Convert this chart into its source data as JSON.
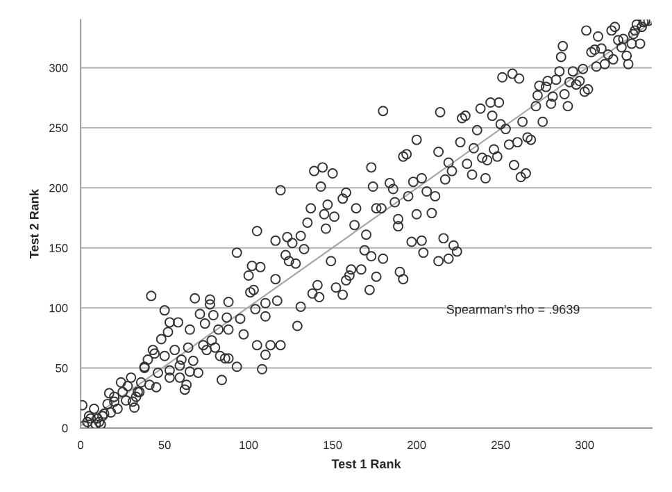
{
  "chart_data": {
    "type": "scatter",
    "xlabel": "Test 1 Rank",
    "ylabel": "Test 2 Rank",
    "xlim": [
      0,
      340
    ],
    "ylim": [
      0,
      340
    ],
    "xticks": [
      0,
      50,
      100,
      150,
      200,
      250,
      300
    ],
    "yticks": [
      0,
      50,
      100,
      150,
      200,
      250,
      300
    ],
    "grid": "y",
    "legend": false,
    "annotations": [
      "Spearman's rho = .9639"
    ],
    "series": [
      {
        "marker": "circle",
        "color": "#333333",
        "x": [
          1,
          2,
          4,
          5,
          8,
          9,
          10,
          12,
          13,
          16,
          17,
          20,
          22,
          24,
          27,
          30,
          32,
          34,
          36,
          38,
          40,
          42,
          43,
          45,
          46,
          48,
          50,
          52,
          53,
          53,
          53,
          58,
          59,
          60,
          62,
          64,
          65,
          67,
          68,
          70,
          71,
          73,
          74,
          77,
          77,
          79,
          80,
          82,
          83,
          84,
          87,
          88,
          88,
          88,
          93,
          93,
          95,
          97,
          100,
          101,
          102,
          103,
          104,
          105,
          105,
          107,
          108,
          110,
          110,
          110,
          113,
          116,
          116,
          117,
          119,
          119,
          122,
          123,
          124,
          126,
          128,
          129,
          131,
          131,
          133,
          135,
          137,
          138,
          139,
          141,
          142,
          143,
          144,
          145,
          146,
          147,
          149,
          150,
          151,
          152,
          156,
          156,
          158,
          158,
          160,
          161,
          163,
          164,
          167,
          169,
          170,
          172,
          173,
          173,
          174,
          176,
          176,
          179,
          180,
          180,
          184,
          186,
          187,
          189,
          189,
          190,
          192,
          192,
          194,
          195,
          197,
          198,
          200,
          200,
          203,
          203,
          204,
          206,
          209,
          211,
          213,
          214,
          213,
          216,
          217,
          219,
          219,
          221,
          222,
          224,
          226,
          227,
          229,
          230,
          233,
          234,
          236,
          238,
          239,
          241,
          242,
          244,
          245,
          246,
          248,
          249,
          250,
          251,
          253,
          255,
          257,
          258,
          260,
          261,
          262,
          263,
          265,
          266,
          268,
          271,
          272,
          273,
          275,
          277,
          278,
          280,
          281,
          283,
          285,
          286,
          287,
          288,
          290,
          291,
          293,
          295,
          297,
          299,
          300,
          301,
          302,
          304,
          306,
          307,
          308,
          310,
          312,
          314,
          316,
          317,
          318,
          320,
          322,
          323,
          325,
          326,
          328,
          329,
          330,
          331,
          333,
          334,
          335,
          336,
          338,
          6,
          11,
          14,
          18,
          20,
          25,
          28,
          31,
          33,
          35,
          38,
          41,
          44,
          50,
          56,
          59,
          63,
          65,
          75,
          78,
          86
        ],
        "values": [
          19,
          2,
          5,
          10,
          16,
          3,
          8,
          3,
          10,
          20,
          29,
          26,
          16,
          38,
          23,
          42,
          17,
          30,
          38,
          51,
          57,
          110,
          65,
          34,
          46,
          74,
          98,
          80,
          88,
          48,
          42,
          88,
          52,
          57,
          32,
          67,
          82,
          56,
          108,
          46,
          95,
          69,
          87,
          107,
          103,
          94,
          67,
          82,
          60,
          40,
          92,
          105,
          82,
          58,
          146,
          51,
          91,
          78,
          127,
          113,
          135,
          115,
          99,
          164,
          69,
          134,
          49,
          104,
          93,
          61,
          69,
          156,
          124,
          106,
          198,
          69,
          144,
          159,
          139,
          154,
          137,
          85,
          160,
          101,
          149,
          171,
          183,
          112,
          214,
          119,
          109,
          201,
          217,
          178,
          166,
          186,
          139,
          212,
          176,
          117,
          191,
          111,
          196,
          123,
          127,
          132,
          169,
          183,
          132,
          148,
          161,
          115,
          217,
          143,
          201,
          183,
          126,
          183,
          264,
          141,
          204,
          199,
          188,
          174,
          168,
          130,
          226,
          124,
          228,
          193,
          155,
          205,
          240,
          178,
          156,
          208,
          146,
          197,
          179,
          193,
          230,
          263,
          139,
          158,
          207,
          141,
          221,
          214,
          152,
          147,
          238,
          258,
          260,
          220,
          211,
          233,
          248,
          266,
          225,
          208,
          223,
          271,
          260,
          232,
          226,
          271,
          253,
          292,
          249,
          236,
          295,
          219,
          238,
          291,
          209,
          255,
          212,
          242,
          240,
          268,
          277,
          285,
          255,
          284,
          289,
          270,
          276,
          290,
          297,
          309,
          318,
          278,
          268,
          288,
          297,
          286,
          289,
          299,
          280,
          331,
          282,
          313,
          315,
          301,
          326,
          316,
          303,
          311,
          331,
          307,
          334,
          323,
          317,
          324,
          310,
          303,
          320,
          328,
          331,
          336,
          320,
          334,
          338,
          339,
          339,
          8,
          5,
          12,
          13,
          22,
          30,
          35,
          22,
          26,
          30,
          50,
          36,
          62,
          60,
          65,
          42,
          36,
          47,
          65,
          73,
          58
        ]
      },
      {
        "type": "line",
        "marker": "none",
        "color": "#a6a6a6",
        "x": [
          0,
          340
        ],
        "values": [
          2,
          338
        ]
      }
    ]
  }
}
